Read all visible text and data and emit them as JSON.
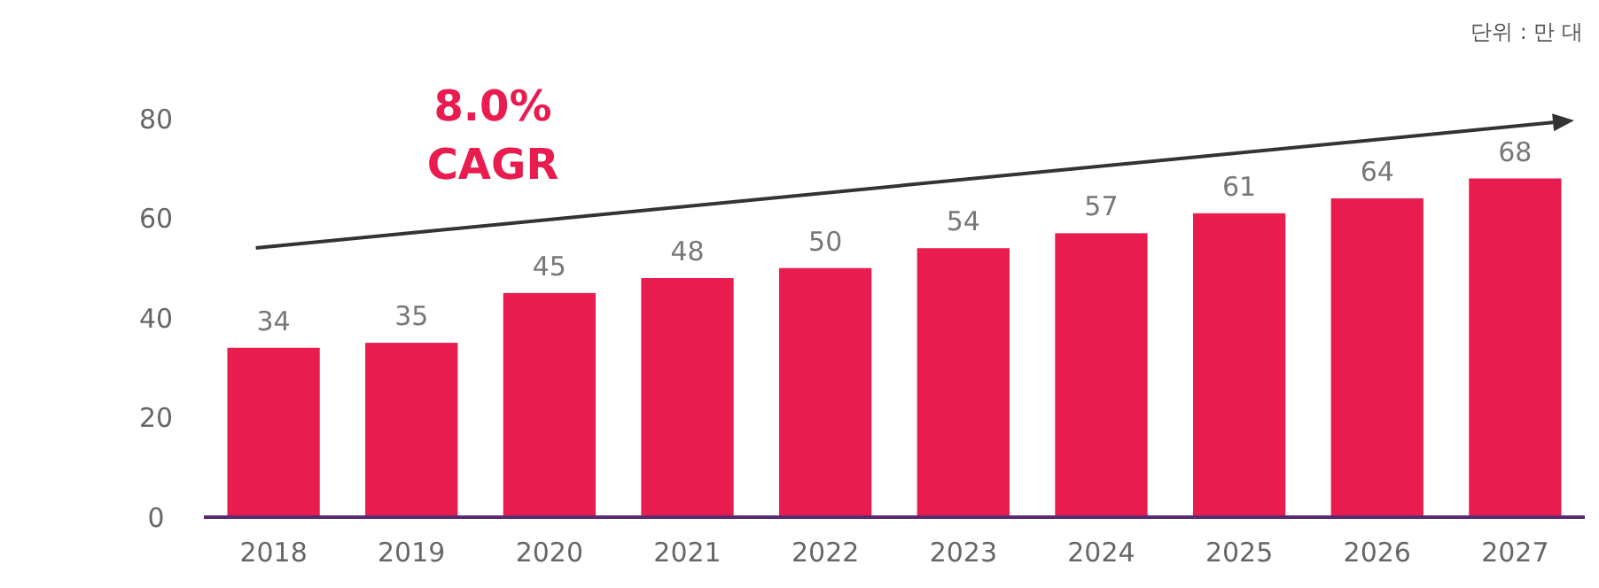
{
  "chart_data": {
    "type": "bar",
    "categories": [
      "2018",
      "2019",
      "2020",
      "2021",
      "2022",
      "2023",
      "2024",
      "2025",
      "2026",
      "2027"
    ],
    "values": [
      34,
      35,
      45,
      48,
      50,
      54,
      57,
      61,
      64,
      68
    ],
    "color": "#e81c4f",
    "ylim": [
      0,
      80
    ],
    "yticks": [
      0,
      20,
      40,
      60,
      80
    ],
    "grid": false,
    "data_labels": true,
    "annotations": [
      "8.0%",
      "CAGR",
      "단위 : 만 대"
    ]
  }
}
